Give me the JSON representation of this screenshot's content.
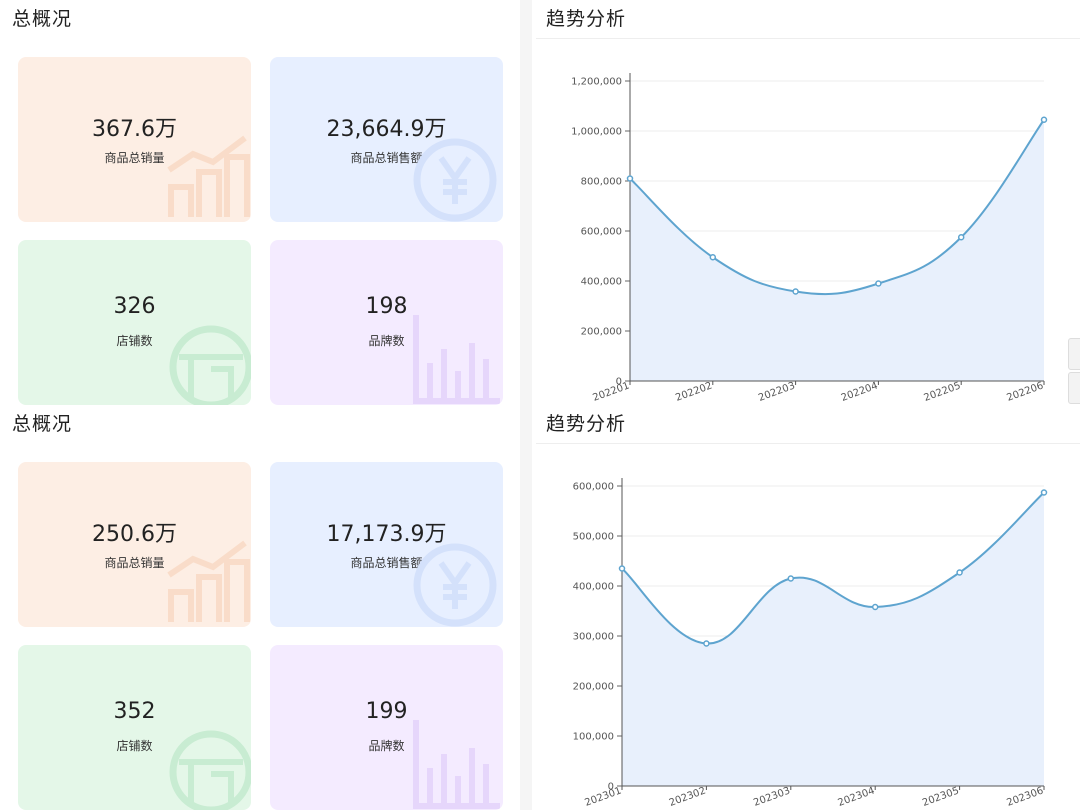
{
  "panels": [
    {
      "overview_title": "总概况",
      "trend_title": "趋势分析",
      "cards": [
        {
          "value": "367.6万",
          "label": "商品总销量",
          "icon": "bar-chart-icon"
        },
        {
          "value": "23,664.9万",
          "label": "商品总销售额",
          "icon": "yen-coin-icon"
        },
        {
          "value": "326",
          "label": "店铺数",
          "icon": "store-icon"
        },
        {
          "value": "198",
          "label": "品牌数",
          "icon": "column-chart-icon"
        }
      ]
    },
    {
      "overview_title": "总概况",
      "trend_title": "趋势分析",
      "cards": [
        {
          "value": "250.6万",
          "label": "商品总销量",
          "icon": "bar-chart-icon"
        },
        {
          "value": "17,173.9万",
          "label": "商品总销售额",
          "icon": "yen-coin-icon"
        },
        {
          "value": "352",
          "label": "店铺数",
          "icon": "store-icon"
        },
        {
          "value": "199",
          "label": "品牌数",
          "icon": "column-chart-icon"
        }
      ]
    }
  ],
  "chart_data": [
    {
      "type": "area",
      "x": [
        "202201",
        "202202",
        "202203",
        "202204",
        "202205",
        "202206"
      ],
      "series": [
        {
          "values": [
            810000,
            495000,
            358000,
            390000,
            575000,
            1045000
          ]
        }
      ],
      "ylim": [
        0,
        1200000
      ],
      "yticks": [
        "0",
        "200,000",
        "400,000",
        "600,000",
        "800,000",
        "1,000,000",
        "1,200,000"
      ],
      "grid": true,
      "line_color": "#5ea4cf",
      "fill_color": "#e8f0fc"
    },
    {
      "type": "area",
      "x": [
        "202301",
        "202302",
        "202303",
        "202304",
        "202305",
        "202306"
      ],
      "series": [
        {
          "values": [
            435000,
            285000,
            415000,
            358000,
            427000,
            587000
          ]
        }
      ],
      "ylim": [
        0,
        600000
      ],
      "yticks": [
        "0",
        "100,000",
        "200,000",
        "300,000",
        "400,000",
        "500,000",
        "600,000"
      ],
      "grid": true,
      "line_color": "#5ea4cf",
      "fill_color": "#e8f0fc"
    }
  ]
}
